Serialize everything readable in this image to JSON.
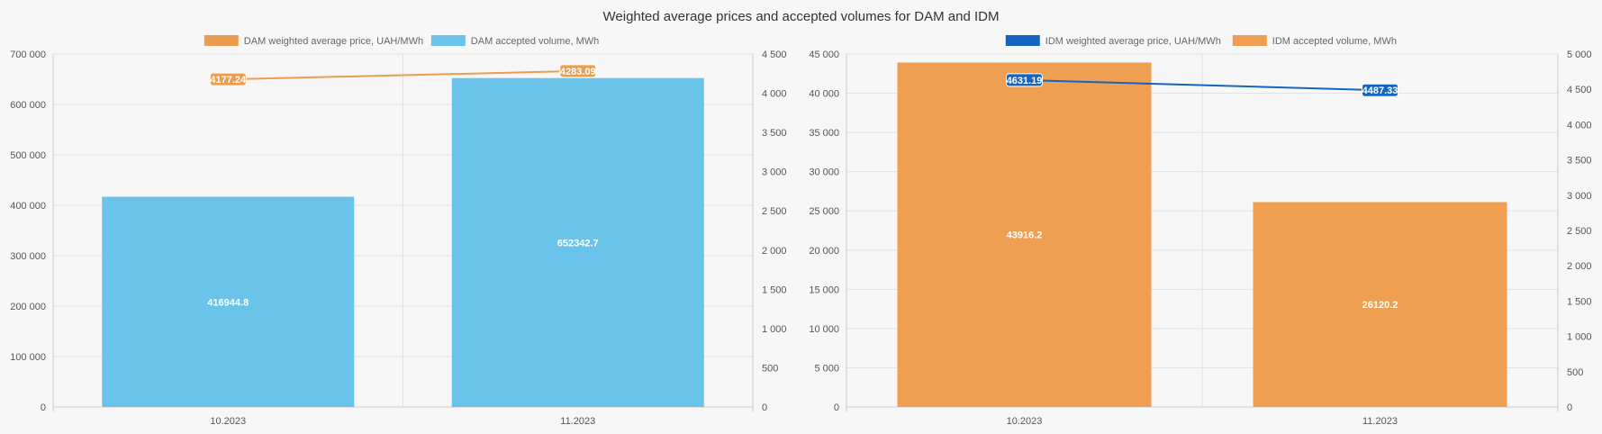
{
  "title": "Weighted average prices and accepted volumes for DAM and IDM",
  "chart_data": [
    {
      "type": "bar",
      "categories": [
        "10.2023",
        "11.2023"
      ],
      "series": [
        {
          "name": "DAM accepted volume, MWh",
          "kind": "bar",
          "axis": "left",
          "color": "#6ac3e8",
          "values": [
            416944.8,
            652342.7
          ],
          "labels": [
            "416944.8",
            "652342.7"
          ]
        },
        {
          "name": "DAM weighted average price, UAH/MWh",
          "kind": "line",
          "axis": "right",
          "color": "#eb9d52",
          "values": [
            4177.24,
            4283.09
          ],
          "labels": [
            "4177.24",
            "4283.09"
          ]
        }
      ],
      "legend": [
        {
          "name": "DAM weighted average price, UAH/MWh",
          "color": "#eb9d52"
        },
        {
          "name": "DAM accepted volume, MWh",
          "color": "#6ac3e8"
        }
      ],
      "left_axis": {
        "ylim": [
          0,
          700000
        ],
        "ticks": [
          "0",
          "100 000",
          "200 000",
          "300 000",
          "400 000",
          "500 000",
          "600 000",
          "700 000"
        ]
      },
      "right_axis": {
        "ylim": [
          0,
          4500
        ],
        "ticks": [
          "0",
          "500",
          "1 000",
          "1 500",
          "2 000",
          "2 500",
          "3 000",
          "3 500",
          "4 000",
          "4 500"
        ]
      },
      "grid": true,
      "legend_position": "top-center"
    },
    {
      "type": "bar",
      "categories": [
        "10.2023",
        "11.2023"
      ],
      "series": [
        {
          "name": "IDM accepted volume, MWh",
          "kind": "bar",
          "axis": "left",
          "color": "#ee9f52",
          "values": [
            43916.2,
            26120.2
          ],
          "labels": [
            "43916.2",
            "26120.2"
          ]
        },
        {
          "name": "IDM weighted average price, UAH/MWh",
          "kind": "line",
          "axis": "right",
          "color": "#1565c0",
          "values": [
            4631.19,
            4487.33
          ],
          "labels": [
            "4631.19",
            "4487.33"
          ]
        }
      ],
      "legend": [
        {
          "name": "IDM weighted average price, UAH/MWh",
          "color": "#1565c0"
        },
        {
          "name": "IDM accepted volume, MWh",
          "color": "#ee9f52"
        }
      ],
      "left_axis": {
        "ylim": [
          0,
          45000
        ],
        "ticks": [
          "0",
          "5 000",
          "10 000",
          "15 000",
          "20 000",
          "25 000",
          "30 000",
          "35 000",
          "40 000",
          "45 000"
        ]
      },
      "right_axis": {
        "ylim": [
          0,
          5000
        ],
        "ticks": [
          "0",
          "500",
          "1 000",
          "1 500",
          "2 000",
          "2 500",
          "3 000",
          "3 500",
          "4 000",
          "4 500",
          "5 000"
        ]
      },
      "grid": true,
      "legend_position": "top-center"
    }
  ]
}
